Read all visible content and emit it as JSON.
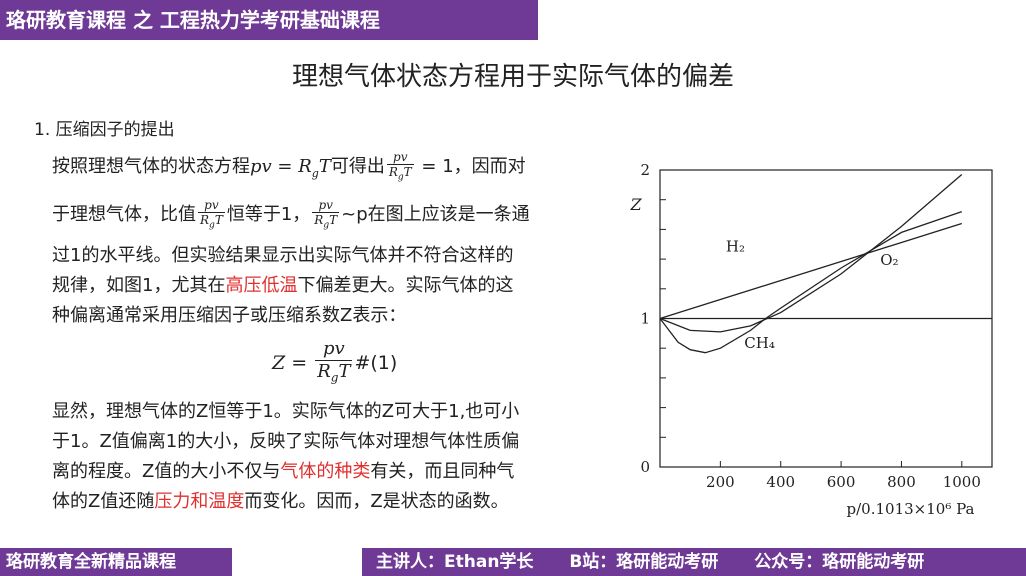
{
  "header": {
    "label": "珞研教育课程 之 工程热力学考研基础课程"
  },
  "slide_title": "理想气体状态方程用于实际气体的偏差",
  "section": {
    "heading": "1. 压缩因子的提出"
  },
  "body": {
    "line1_a": "按照理想气体的状态方程",
    "line1_eq": "pv = R",
    "line1_sub": "g",
    "line1_T": "T",
    "line1_b": "可得出",
    "line1_after": " = 1，因而对",
    "frac_num": "pv",
    "frac_den": "R",
    "frac_den_sub": "g",
    "frac_den_T": "T",
    "line2_a": "于理想气体，比值",
    "line2_b": "恒等于1，",
    "line2_c": "~p在图上应该是一条通",
    "line3": "过1的水平线。但实验结果显示出实际气体并不符合这样的",
    "line4_a": "规律，如图1，尤其在",
    "line4_red": "高压低温",
    "line4_b": "下偏差更大。实际气体的这",
    "line5": "种偏离通常采用压缩因子或压缩系数Z表示：",
    "eq_lhs": "Z = ",
    "eq_tag": "#(1)",
    "line6": "显然，理想气体的Z恒等于1。实际气体的Z可大于1,也可小",
    "line7": "于1。Z值偏离1的大小，反映了实际气体对理想气体性质偏",
    "line8_a": "离的程度。Z值的大小不仅与",
    "line8_red": "气体的种类",
    "line8_b": "有关，而且同种气",
    "line9_a": "体的Z值还随",
    "line9_red": "压力和温度",
    "line9_b": "而变化。因而，Z是状态的函数。"
  },
  "chart_data": {
    "type": "line",
    "ylabel": "Z",
    "xlabel": "p/0.1013×10⁶ Pa",
    "x_ticks": [
      "200",
      "400",
      "600",
      "800",
      "1000"
    ],
    "y_ticks": [
      "0",
      "1",
      "2"
    ],
    "xlim": [
      0,
      1100
    ],
    "ylim": [
      0,
      2
    ],
    "series": [
      {
        "name": "H₂",
        "x": [
          0,
          1000
        ],
        "y": [
          1.0,
          1.64
        ]
      },
      {
        "name": "O₂",
        "x": [
          0,
          100,
          200,
          300,
          400,
          600,
          800,
          1000
        ],
        "y": [
          1.0,
          0.92,
          0.91,
          0.95,
          1.04,
          1.3,
          1.62,
          1.97
        ]
      },
      {
        "name": "CH₄",
        "x": [
          0,
          60,
          100,
          150,
          200,
          300,
          350,
          400,
          600,
          800,
          1000
        ],
        "y": [
          1.0,
          0.84,
          0.79,
          0.77,
          0.8,
          0.92,
          1.0,
          1.07,
          1.34,
          1.58,
          1.72
        ]
      },
      {
        "name": "ideal",
        "x": [
          0,
          1100
        ],
        "y": [
          1.0,
          1.0
        ]
      }
    ]
  },
  "footer": {
    "left": "珞研教育全新精品课程",
    "lecturer": "主讲人：Ethan学长",
    "bilibili": "B站：珞研能动考研",
    "wechat": "公众号：珞研能动考研"
  },
  "colors": {
    "brand": "#6f3a96",
    "highlight": "#e03030"
  }
}
